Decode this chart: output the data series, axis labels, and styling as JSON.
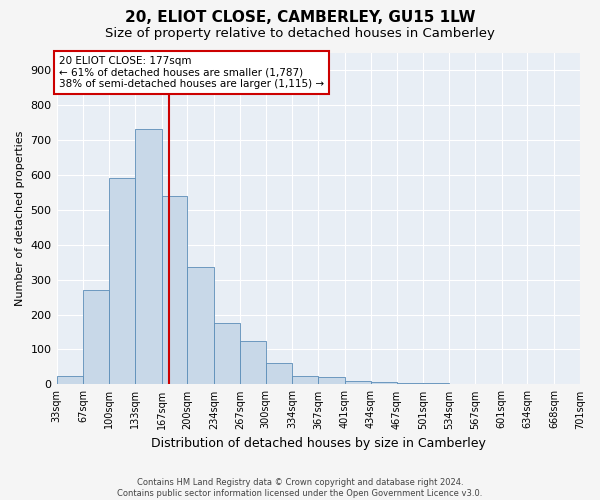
{
  "title1": "20, ELIOT CLOSE, CAMBERLEY, GU15 1LW",
  "title2": "Size of property relative to detached houses in Camberley",
  "xlabel": "Distribution of detached houses by size in Camberley",
  "ylabel": "Number of detached properties",
  "bin_edges": [
    33,
    67,
    100,
    133,
    167,
    200,
    234,
    267,
    300,
    334,
    367,
    401,
    434,
    467,
    501,
    534,
    567,
    601,
    634,
    668,
    701
  ],
  "bar_heights": [
    25,
    270,
    590,
    730,
    540,
    335,
    175,
    125,
    60,
    25,
    20,
    10,
    8,
    5,
    3,
    1,
    0,
    1,
    0,
    2
  ],
  "bar_color": "#c8d8e8",
  "bar_edge_color": "#5b8db8",
  "property_size": 177,
  "red_line_color": "#cc0000",
  "annotation_text": "20 ELIOT CLOSE: 177sqm\n← 61% of detached houses are smaller (1,787)\n38% of semi-detached houses are larger (1,115) →",
  "annotation_box_color": "#ffffff",
  "annotation_box_edge_color": "#cc0000",
  "ylim": [
    0,
    950
  ],
  "yticks": [
    0,
    100,
    200,
    300,
    400,
    500,
    600,
    700,
    800,
    900
  ],
  "footer_text": "Contains HM Land Registry data © Crown copyright and database right 2024.\nContains public sector information licensed under the Open Government Licence v3.0.",
  "plot_bg_color": "#e8eef5",
  "fig_bg_color": "#f5f5f5",
  "grid_color": "#ffffff",
  "title1_fontsize": 11,
  "title2_fontsize": 9.5,
  "ylabel_fontsize": 8,
  "xlabel_fontsize": 9
}
